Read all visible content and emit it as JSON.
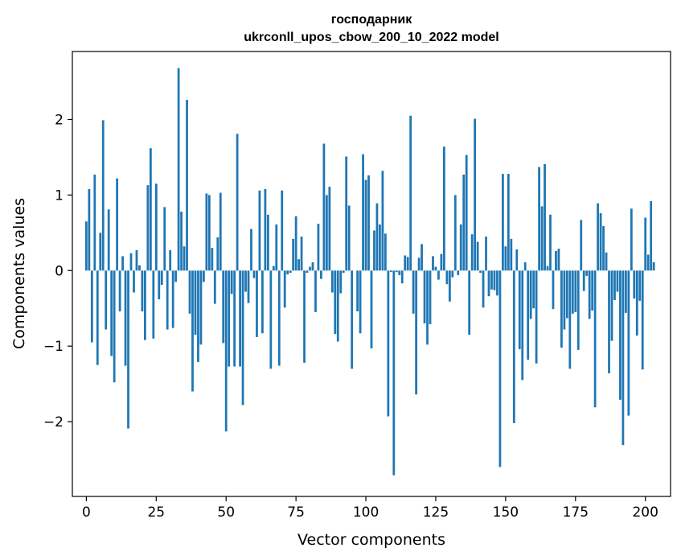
{
  "chart_data": {
    "type": "bar",
    "title_line1": "господарник",
    "title_line2": "ukrconll_upos_cbow_200_10_2022 model",
    "xlabel": "Vector components",
    "ylabel": "Components values",
    "xlim": [
      -5,
      209
    ],
    "ylim": [
      -2.99,
      2.9
    ],
    "xticks": [
      0,
      25,
      50,
      75,
      100,
      125,
      150,
      175,
      200
    ],
    "xtick_labels": [
      "0",
      "25",
      "50",
      "75",
      "100",
      "125",
      "150",
      "175",
      "200"
    ],
    "yticks": [
      -2,
      -1,
      0,
      1,
      2
    ],
    "ytick_labels": [
      "−2",
      "−1",
      "0",
      "1",
      "2"
    ],
    "grid": false,
    "color": "#1f77b4",
    "values": [
      0.65,
      1.08,
      -0.95,
      1.27,
      -1.25,
      0.5,
      1.99,
      -0.78,
      0.81,
      -1.13,
      -1.48,
      1.22,
      -0.54,
      0.19,
      -1.26,
      -2.09,
      0.23,
      -0.29,
      0.27,
      0.07,
      -0.54,
      -0.92,
      1.13,
      1.62,
      -0.9,
      1.15,
      -0.38,
      -0.19,
      0.84,
      -0.78,
      0.27,
      -0.76,
      -0.15,
      2.68,
      0.78,
      0.32,
      2.26,
      -0.57,
      -1.6,
      -0.85,
      -1.21,
      -0.98,
      -0.15,
      1.02,
      1.0,
      0.3,
      -0.44,
      0.44,
      1.03,
      -0.96,
      -2.13,
      -1.27,
      -0.31,
      -1.27,
      1.81,
      -1.27,
      -1.78,
      -0.28,
      -0.43,
      0.55,
      -0.1,
      -0.88,
      1.06,
      -0.83,
      1.08,
      0.74,
      -1.3,
      0.06,
      0.61,
      -1.26,
      1.06,
      -0.49,
      -0.05,
      -0.03,
      0.42,
      0.72,
      0.15,
      0.45,
      -1.22,
      -0.03,
      0.05,
      0.11,
      -0.55,
      0.62,
      -0.11,
      1.68,
      1.0,
      1.11,
      -0.29,
      -0.84,
      -0.94,
      -0.3,
      -0.03,
      1.51,
      0.86,
      -1.3,
      0.0,
      -0.54,
      -0.83,
      1.54,
      1.2,
      1.26,
      -1.03,
      0.53,
      0.89,
      0.61,
      1.32,
      0.49,
      -1.93,
      -0.02,
      -2.71,
      -0.02,
      -0.06,
      -0.17,
      0.2,
      0.18,
      2.05,
      -0.57,
      -1.64,
      0.17,
      0.35,
      -0.7,
      -0.98,
      -0.71,
      0.19,
      0.05,
      -0.12,
      0.22,
      1.64,
      -0.18,
      -0.41,
      -0.09,
      1.0,
      -0.06,
      0.61,
      1.27,
      1.53,
      -0.85,
      0.48,
      2.01,
      0.38,
      -0.03,
      -0.49,
      0.45,
      -0.34,
      -0.25,
      -0.26,
      -0.33,
      -2.6,
      1.28,
      0.32,
      1.28,
      0.42,
      -2.02,
      0.28,
      -1.04,
      -1.45,
      0.11,
      -1.18,
      -0.64,
      -0.5,
      -1.23,
      1.37,
      0.85,
      1.41,
      0.06,
      0.74,
      -0.51,
      0.26,
      0.29,
      -1.02,
      -0.78,
      -0.63,
      -1.3,
      -0.57,
      -0.55,
      -1.05,
      0.67,
      -0.27,
      -0.07,
      -0.64,
      -0.53,
      -1.81,
      0.89,
      0.76,
      0.59,
      0.24,
      -1.36,
      -0.93,
      -0.39,
      -0.28,
      -1.71,
      -2.31,
      -0.56,
      -1.92,
      0.82,
      -0.37,
      -0.86,
      -0.4,
      -1.31,
      0.7,
      0.21,
      0.92,
      0.11
    ]
  }
}
